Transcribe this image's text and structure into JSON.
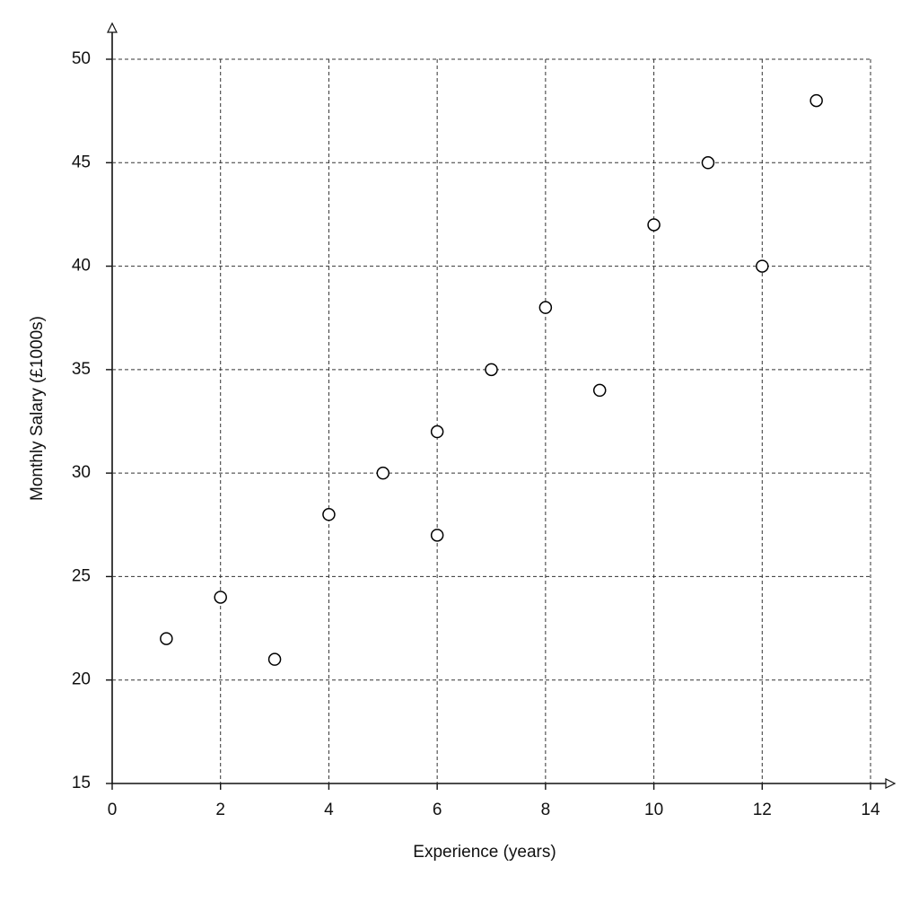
{
  "chart_data": {
    "type": "scatter",
    "x_label": "Experience (years)",
    "y_label": "Monthly Salary (£1000s)",
    "x": [
      1,
      2,
      3,
      4,
      5,
      6,
      6,
      7,
      8,
      9,
      10,
      11,
      12,
      13
    ],
    "y": [
      22,
      24,
      21,
      28,
      30,
      32,
      27,
      35,
      38,
      34,
      42,
      45,
      40,
      48
    ],
    "xlim": [
      0,
      14
    ],
    "ylim": [
      15,
      50
    ],
    "xticks": [
      0,
      2,
      4,
      6,
      8,
      10,
      12,
      14
    ],
    "yticks": [
      15,
      20,
      25,
      30,
      35,
      40,
      45,
      50
    ],
    "grid": true,
    "color": "#000000"
  }
}
